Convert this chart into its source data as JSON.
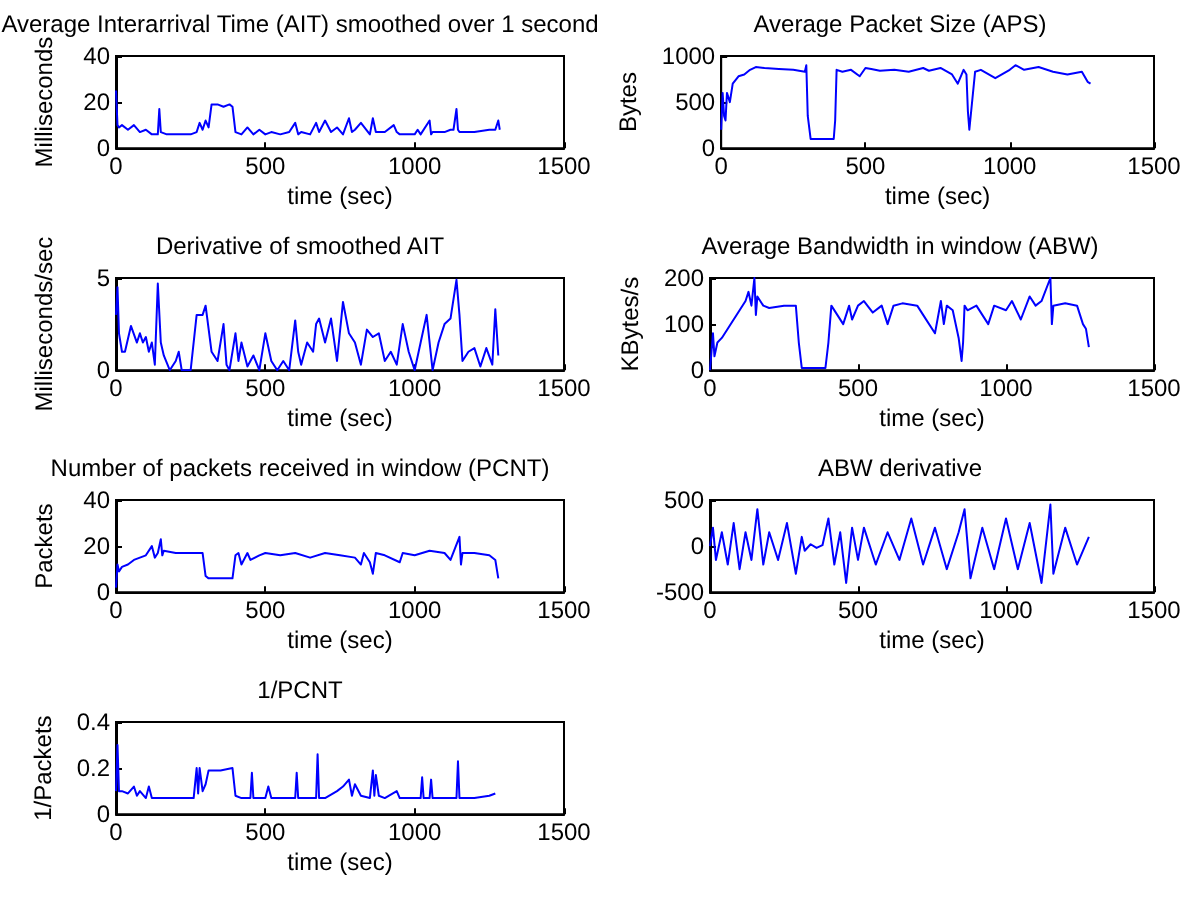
{
  "chart_data": [
    {
      "type": "line",
      "title": "Average Interarrival Time (AIT) smoothed over 1 second",
      "xlabel": "time (sec)",
      "ylabel": "Milliseconds",
      "xlim": [
        0,
        1500
      ],
      "xticks": [
        0,
        500,
        1000,
        1500
      ],
      "ylim": [
        0,
        40
      ],
      "yticks": [
        0,
        20,
        40
      ],
      "marker": "none",
      "series": [
        {
          "color": "#0000ff",
          "x": [
            0,
            5,
            10,
            20,
            40,
            60,
            80,
            100,
            120,
            140,
            145,
            150,
            170,
            200,
            250,
            270,
            280,
            290,
            300,
            310,
            320,
            340,
            360,
            380,
            390,
            400,
            420,
            440,
            460,
            480,
            500,
            520,
            550,
            580,
            600,
            610,
            620,
            650,
            670,
            680,
            700,
            720,
            740,
            760,
            780,
            790,
            800,
            820,
            850,
            860,
            870,
            900,
            930,
            940,
            950,
            1000,
            1010,
            1020,
            1050,
            1055,
            1060,
            1100,
            1120,
            1130,
            1140,
            1145,
            1150,
            1200,
            1250,
            1270,
            1280,
            1285
          ],
          "values": [
            25,
            10,
            9,
            10,
            8,
            10,
            7,
            8,
            6,
            6,
            17,
            7,
            6,
            6,
            6,
            7,
            11,
            8,
            12,
            9,
            19,
            19,
            18,
            19,
            18,
            7,
            6,
            9,
            6,
            8,
            6,
            7,
            6,
            7,
            11,
            6,
            7,
            6,
            11,
            7,
            12,
            7,
            9,
            6,
            13,
            7,
            8,
            11,
            6,
            13,
            7,
            7,
            10,
            7,
            6,
            6,
            8,
            6,
            12,
            6,
            7,
            7,
            8,
            8,
            17,
            8,
            7,
            7,
            8,
            8,
            12,
            8
          ]
        }
      ]
    },
    {
      "type": "line",
      "title": "Average Packet Size (APS)",
      "xlabel": "time (sec)",
      "ylabel": "Bytes",
      "xlim": [
        0,
        1500
      ],
      "xticks": [
        0,
        500,
        1000,
        1500
      ],
      "ylim": [
        0,
        1000
      ],
      "yticks": [
        0,
        500,
        1000
      ],
      "marker": "none",
      "series": [
        {
          "color": "#0000ff",
          "x": [
            0,
            5,
            10,
            15,
            20,
            30,
            40,
            60,
            80,
            100,
            120,
            150,
            200,
            250,
            290,
            295,
            300,
            310,
            350,
            390,
            395,
            400,
            420,
            450,
            480,
            500,
            520,
            550,
            600,
            650,
            700,
            720,
            760,
            800,
            820,
            840,
            850,
            855,
            860,
            880,
            900,
            950,
            1000,
            1020,
            1050,
            1100,
            1150,
            1200,
            1250,
            1270,
            1280
          ],
          "values": [
            200,
            600,
            350,
            300,
            600,
            500,
            700,
            780,
            800,
            850,
            880,
            870,
            860,
            850,
            830,
            900,
            350,
            100,
            100,
            100,
            300,
            850,
            830,
            850,
            780,
            870,
            860,
            840,
            850,
            830,
            870,
            840,
            870,
            800,
            700,
            850,
            800,
            400,
            200,
            830,
            850,
            760,
            850,
            900,
            850,
            880,
            830,
            800,
            830,
            720,
            700
          ]
        }
      ]
    },
    {
      "type": "line",
      "title": "Derivative of smoothed AIT",
      "xlabel": "time (sec)",
      "ylabel": "Milliseconds/sec",
      "xlim": [
        0,
        1500
      ],
      "xticks": [
        0,
        500,
        1000,
        1500
      ],
      "ylim": [
        0,
        5
      ],
      "yticks": [
        0,
        5
      ],
      "marker": "none",
      "series": [
        {
          "color": "#0000ff",
          "x": [
            0,
            5,
            10,
            20,
            30,
            50,
            70,
            80,
            90,
            100,
            110,
            120,
            130,
            140,
            150,
            160,
            180,
            200,
            210,
            220,
            250,
            270,
            290,
            300,
            320,
            340,
            360,
            370,
            380,
            400,
            410,
            420,
            440,
            460,
            480,
            500,
            520,
            540,
            560,
            580,
            600,
            610,
            620,
            640,
            660,
            670,
            680,
            700,
            720,
            740,
            760,
            780,
            800,
            820,
            840,
            860,
            880,
            900,
            920,
            940,
            960,
            980,
            1000,
            1020,
            1040,
            1060,
            1080,
            1100,
            1120,
            1140,
            1150,
            1160,
            1180,
            1200,
            1220,
            1240,
            1260,
            1270,
            1280
          ],
          "values": [
            3,
            4.5,
            2,
            1,
            1,
            2.4,
            1.5,
            2,
            1.5,
            1.8,
            1,
            1.5,
            0.3,
            4.7,
            1.5,
            0.8,
            0,
            0.5,
            1,
            0,
            0,
            3,
            3,
            3.5,
            1,
            0.5,
            2.5,
            0.3,
            0,
            2,
            0.5,
            1.5,
            0.2,
            0.8,
            0,
            2,
            0.5,
            0,
            0.5,
            0,
            2.7,
            1,
            0.3,
            1.5,
            1,
            2.5,
            2.8,
            1.5,
            2.8,
            0.5,
            3.7,
            2,
            1.5,
            0.3,
            2.2,
            1.8,
            2,
            0.5,
            1,
            0.3,
            2.5,
            1,
            0,
            1.5,
            3,
            0,
            1.5,
            2.5,
            2.8,
            4.9,
            3,
            0.5,
            1,
            1.2,
            0.2,
            1.2,
            0.3,
            3.3,
            0.8
          ]
        }
      ]
    },
    {
      "type": "line",
      "title": "Average Bandwidth in window (ABW)",
      "xlabel": "time (sec)",
      "ylabel": "KBytes/s",
      "xlim": [
        0,
        1500
      ],
      "xticks": [
        0,
        500,
        1000,
        1500
      ],
      "ylim": [
        0,
        200
      ],
      "yticks": [
        0,
        100,
        200
      ],
      "marker": "none",
      "series": [
        {
          "color": "#0000ff",
          "x": [
            0,
            10,
            15,
            25,
            40,
            60,
            80,
            100,
            120,
            130,
            140,
            150,
            155,
            160,
            180,
            200,
            250,
            290,
            300,
            310,
            350,
            390,
            400,
            410,
            430,
            450,
            470,
            480,
            500,
            520,
            550,
            580,
            600,
            620,
            650,
            700,
            720,
            760,
            780,
            790,
            800,
            820,
            840,
            850,
            855,
            860,
            870,
            900,
            940,
            960,
            1000,
            1020,
            1050,
            1080,
            1100,
            1120,
            1150,
            1155,
            1160,
            1200,
            1240,
            1250,
            1260,
            1270,
            1280
          ],
          "values": [
            0,
            80,
            30,
            60,
            70,
            90,
            110,
            130,
            150,
            170,
            140,
            200,
            120,
            160,
            140,
            135,
            140,
            140,
            60,
            5,
            5,
            5,
            60,
            140,
            120,
            100,
            140,
            110,
            140,
            150,
            125,
            140,
            100,
            140,
            145,
            140,
            120,
            80,
            150,
            100,
            140,
            130,
            70,
            20,
            60,
            140,
            130,
            140,
            100,
            140,
            130,
            150,
            110,
            160,
            140,
            150,
            200,
            100,
            140,
            145,
            140,
            120,
            100,
            90,
            50
          ]
        }
      ]
    },
    {
      "type": "line",
      "title": "Number of packets received in window (PCNT)",
      "xlabel": "time (sec)",
      "ylabel": "Packets",
      "xlim": [
        0,
        1500
      ],
      "xticks": [
        0,
        500,
        1000,
        1500
      ],
      "ylim": [
        0,
        40
      ],
      "yticks": [
        0,
        20,
        40
      ],
      "marker": "none",
      "series": [
        {
          "color": "#0000ff",
          "x": [
            0,
            5,
            10,
            20,
            40,
            60,
            80,
            100,
            120,
            130,
            140,
            150,
            155,
            160,
            200,
            250,
            290,
            300,
            310,
            350,
            390,
            400,
            410,
            420,
            440,
            450,
            480,
            500,
            550,
            600,
            650,
            700,
            750,
            800,
            820,
            830,
            850,
            860,
            870,
            900,
            950,
            960,
            1000,
            1050,
            1100,
            1120,
            1150,
            1155,
            1160,
            1200,
            1250,
            1270,
            1280
          ],
          "values": [
            2,
            12,
            9,
            11,
            12,
            14,
            15,
            16,
            20,
            15,
            17,
            23,
            16,
            18,
            17,
            17,
            17,
            7,
            6,
            6,
            6,
            16,
            17,
            12,
            17,
            14,
            16,
            17,
            16,
            17,
            15,
            17,
            16,
            15,
            12,
            17,
            13,
            8,
            17,
            16,
            13,
            17,
            16,
            18,
            17,
            14,
            24,
            12,
            17,
            17,
            16,
            14,
            6
          ]
        }
      ]
    },
    {
      "type": "line",
      "title": "ABW derivative",
      "xlabel": "time (sec)",
      "xlim": [
        0,
        1500
      ],
      "xticks": [
        0,
        500,
        1000,
        1500
      ],
      "ylim": [
        -500,
        500
      ],
      "yticks": [
        -500,
        0,
        500
      ],
      "marker": "none",
      "series": [
        {
          "color": "#0000ff",
          "x": [
            0,
            10,
            20,
            40,
            60,
            80,
            100,
            120,
            140,
            160,
            180,
            200,
            230,
            260,
            290,
            310,
            320,
            340,
            360,
            380,
            400,
            420,
            440,
            460,
            480,
            500,
            520,
            560,
            600,
            640,
            680,
            720,
            760,
            800,
            840,
            860,
            880,
            920,
            960,
            1000,
            1040,
            1080,
            1120,
            1150,
            1160,
            1200,
            1240,
            1280
          ],
          "values": [
            0,
            200,
            -150,
            150,
            -200,
            250,
            -250,
            150,
            -150,
            400,
            -200,
            150,
            -150,
            250,
            -300,
            100,
            -50,
            20,
            -20,
            10,
            300,
            -200,
            150,
            -400,
            200,
            -150,
            200,
            -200,
            150,
            -150,
            300,
            -200,
            200,
            -250,
            150,
            400,
            -350,
            200,
            -250,
            300,
            -250,
            250,
            -400,
            450,
            -300,
            200,
            -200,
            100
          ]
        }
      ]
    },
    {
      "type": "line",
      "title": "1/PCNT",
      "xlabel": "time (sec)",
      "ylabel": "1/Packets",
      "xlim": [
        0,
        1500
      ],
      "xticks": [
        0,
        500,
        1000,
        1500
      ],
      "ylim": [
        0,
        0.4
      ],
      "yticks": [
        0,
        0.2,
        0.4
      ],
      "marker": "none",
      "series": [
        {
          "color": "#0000ff",
          "x": [
            0,
            5,
            10,
            20,
            40,
            60,
            70,
            80,
            100,
            110,
            120,
            150,
            200,
            260,
            270,
            275,
            280,
            290,
            300,
            310,
            350,
            390,
            400,
            420,
            450,
            455,
            460,
            500,
            510,
            520,
            550,
            600,
            605,
            610,
            650,
            670,
            675,
            680,
            700,
            740,
            760,
            780,
            790,
            800,
            820,
            850,
            860,
            865,
            870,
            880,
            900,
            940,
            950,
            1000,
            1020,
            1025,
            1030,
            1050,
            1055,
            1060,
            1100,
            1140,
            1145,
            1150,
            1200,
            1250,
            1270
          ],
          "values": [
            0.1,
            0.3,
            0.1,
            0.1,
            0.09,
            0.12,
            0.08,
            0.1,
            0.07,
            0.12,
            0.07,
            0.07,
            0.07,
            0.07,
            0.2,
            0.09,
            0.2,
            0.1,
            0.13,
            0.19,
            0.19,
            0.2,
            0.08,
            0.07,
            0.07,
            0.18,
            0.07,
            0.07,
            0.12,
            0.07,
            0.07,
            0.07,
            0.18,
            0.07,
            0.07,
            0.07,
            0.26,
            0.07,
            0.07,
            0.1,
            0.12,
            0.15,
            0.08,
            0.13,
            0.08,
            0.07,
            0.19,
            0.08,
            0.17,
            0.08,
            0.07,
            0.1,
            0.07,
            0.07,
            0.07,
            0.16,
            0.07,
            0.07,
            0.15,
            0.07,
            0.07,
            0.07,
            0.23,
            0.07,
            0.07,
            0.08,
            0.09
          ]
        }
      ]
    }
  ]
}
